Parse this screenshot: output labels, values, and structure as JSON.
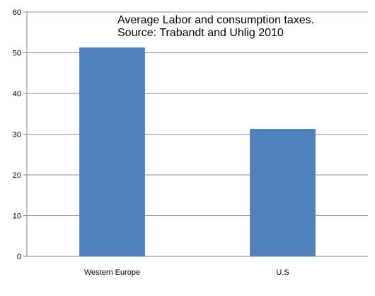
{
  "chart_data": {
    "type": "bar",
    "title_lines": [
      "Average Labor and consumption taxes.",
      "Source: Trabandt and Uhlig 2010"
    ],
    "categories": [
      "Western Europe",
      "U.S"
    ],
    "values": [
      51.3,
      31.3
    ],
    "ylim": [
      0,
      60
    ],
    "yticks": [
      "0",
      "10",
      "20",
      "30",
      "40",
      "50",
      "60"
    ],
    "grid": true,
    "bar_color": "#4F81BD",
    "grid_color": "#8C8C8C",
    "axis_color": "#868686",
    "text_color": "#000000"
  }
}
